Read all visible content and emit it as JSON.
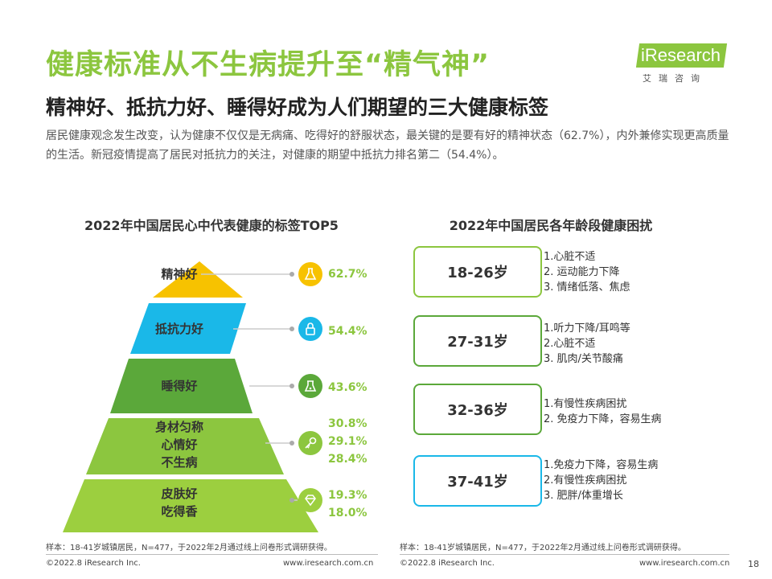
{
  "header": {
    "title": "健康标准从不生病提升至“精气神”",
    "subtitle": "精神好、抵抗力好、睡得好成为人们期望的三大健康标签",
    "description": "居民健康观念发生改变，认为健康不仅仅是无病痛、吃得好的舒服状态，最关键的是要有好的精神状态（62.7%），内外兼修实现更高质量的生活。新冠疫情提高了居民对抵抗力的关注，对健康的期望中抵抗力排名第二（54.4%）。"
  },
  "logo": {
    "brand": "iResearch",
    "cn": "艾瑞咨询"
  },
  "left_panel": {
    "title": "2022年中国居民心中代表健康的标签TOP5",
    "note": "样本：18-41岁城镇居民，N=477，于2022年2月通过线上问卷形式调研获得。",
    "footer_left": "©2022.8 iResearch Inc.",
    "footer_right": "www.iresearch.com.cn"
  },
  "right_panel": {
    "title": "2022年中国居民各年龄段健康困扰",
    "note": "样本：18-41岁城镇居民，N=477，于2022年2月通过线上问卷形式调研获得。",
    "footer_left": "©2022.8 iResearch Inc.",
    "footer_right": "www.iresearch.com.cn",
    "age_groups": [
      {
        "age": "18-26岁",
        "issues": [
          "1.心脏不适",
          "2. 运动能力下降",
          "3. 情绪低落、焦虑"
        ]
      },
      {
        "age": "27-31岁",
        "issues": [
          "1.听力下降/耳鸣等",
          "2.心脏不适",
          "3. 肌肉/关节酸痛"
        ]
      },
      {
        "age": "32-36岁",
        "issues": [
          "1.有慢性疾病困扰",
          "2. 免疫力下降，容易生病"
        ]
      },
      {
        "age": "37-41岁",
        "issues": [
          "1.免疫力下降，容易生病",
          "2.有慢性疾病困扰",
          "3. 肥胖/体重增长"
        ]
      }
    ]
  },
  "page_number": "18",
  "colors": {
    "accent": "#8cc63f",
    "tier1": "#f7c200",
    "tier2": "#1ab8e8",
    "tier3": "#5ba83a",
    "tier4": "#8cc63f",
    "tier5": "#9ccf3f",
    "age_border_1": "#8cc63f",
    "age_border_2": "#5ba83a",
    "age_border_3": "#5ba83a",
    "age_border_4": "#1ab8e8"
  },
  "chart_data": {
    "type": "bar",
    "title": "2022年中国居民心中代表健康的标签TOP5",
    "tiers": [
      {
        "labels": [
          "精神好"
        ],
        "values": [
          "62.7%"
        ],
        "icon": "flask-icon"
      },
      {
        "labels": [
          "抵抗力好"
        ],
        "values": [
          "54.4%"
        ],
        "icon": "lock-icon"
      },
      {
        "labels": [
          "睡得好"
        ],
        "values": [
          "43.6%"
        ],
        "icon": "beaker-icon"
      },
      {
        "labels": [
          "身材匀称",
          "心情好",
          "不生病"
        ],
        "values": [
          "30.8%",
          "29.1%",
          "28.4%"
        ],
        "icon": "key-icon"
      },
      {
        "labels": [
          "皮肤好",
          "吃得香"
        ],
        "values": [
          "19.3%",
          "18.0%"
        ],
        "icon": "diamond-icon"
      }
    ]
  }
}
